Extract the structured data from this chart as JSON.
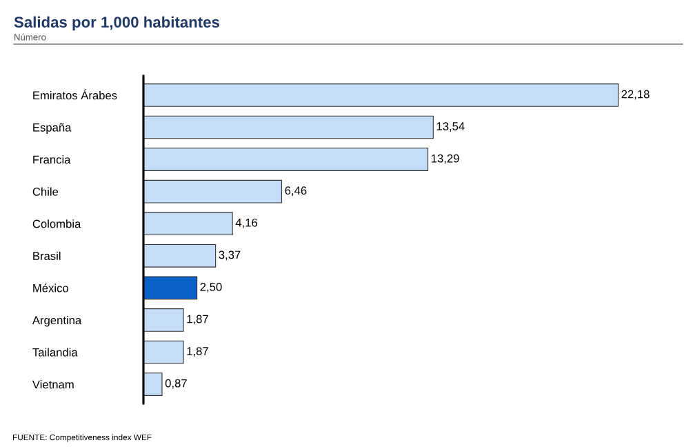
{
  "chart_data": {
    "type": "bar",
    "orientation": "horizontal",
    "title": "Salidas por 1,000 habitantes",
    "subtitle": "Número",
    "categories": [
      "Emiratos Árabes",
      "España",
      "Francia",
      "Chile",
      "Colombia",
      "Brasil",
      "México",
      "Argentina",
      "Tailandia",
      "Vietnam"
    ],
    "values": [
      22.18,
      13.54,
      13.29,
      6.46,
      4.16,
      3.37,
      2.5,
      1.87,
      1.87,
      0.87
    ],
    "colors": [
      "#c6ddf8",
      "#c6ddf8",
      "#c6ddf8",
      "#c6ddf8",
      "#c6ddf8",
      "#c6ddf8",
      "#0a62c8",
      "#c6ddf8",
      "#c6ddf8",
      "#c6ddf8"
    ],
    "value_labels": [
      "22,18",
      "13,54",
      "13,29",
      "6,46",
      "4,16",
      "3,37",
      "2,50",
      "1,87",
      "1,87",
      "0,87"
    ],
    "annotations": [
      "FUENTE: Competitiveness index WEF"
    ],
    "grid": false,
    "legend": false
  }
}
